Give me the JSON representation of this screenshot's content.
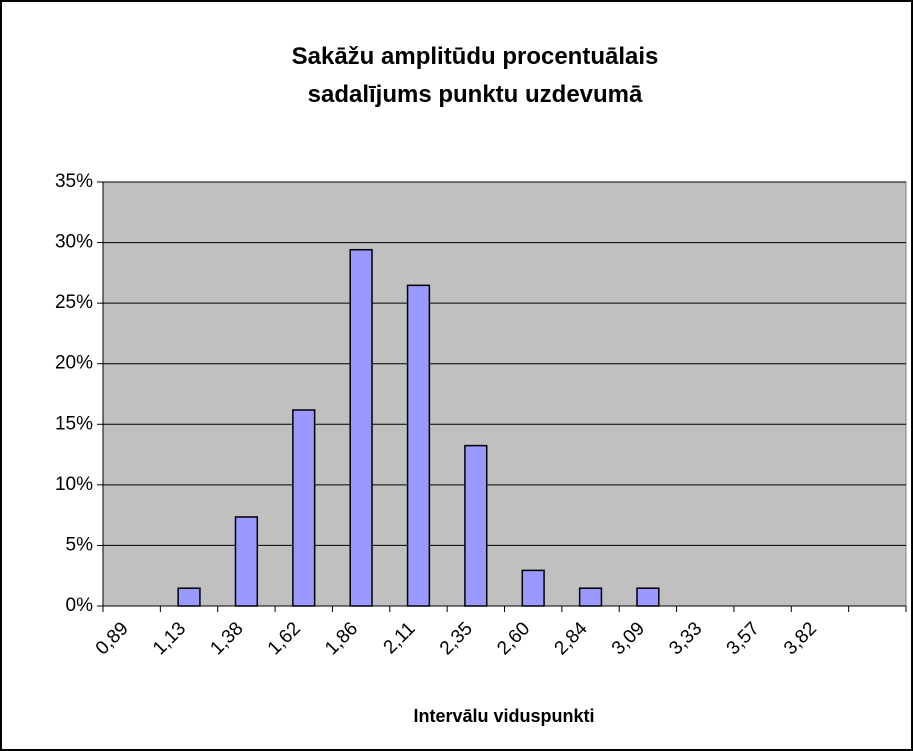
{
  "chart_data": {
    "type": "bar",
    "title": "Sakāžu amplitūdu procentuālais sadalījums punktu uzdevumā",
    "x_label": "Intervālu viduspunkti",
    "categories": [
      "0,89",
      "1,13",
      "1,38",
      "1,62",
      "1,86",
      "2,11",
      "2,35",
      "2,60",
      "2,84",
      "3,09",
      "3,33",
      "3,57",
      "3,82",
      null
    ],
    "values": [
      0,
      1.47,
      7.35,
      16.18,
      29.41,
      26.47,
      13.24,
      2.94,
      1.47,
      1.47,
      0,
      0,
      0,
      0
    ],
    "color": "#9999ff",
    "ylim": [
      0,
      35
    ],
    "yticks": [
      {
        "value": 0,
        "label": "0%"
      },
      {
        "value": 5,
        "label": "5%"
      },
      {
        "value": 10,
        "label": "10%"
      },
      {
        "value": 15,
        "label": "15%"
      },
      {
        "value": 20,
        "label": "20%"
      },
      {
        "value": 25,
        "label": "25%"
      },
      {
        "value": 30,
        "label": "30%"
      },
      {
        "value": 35,
        "label": "35%"
      }
    ],
    "grid": true
  }
}
